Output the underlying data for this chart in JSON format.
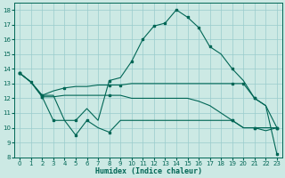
{
  "xlabel": "Humidex (Indice chaleur)",
  "xlim": [
    -0.5,
    23.5
  ],
  "ylim": [
    8,
    18.5
  ],
  "yticks": [
    8,
    9,
    10,
    11,
    12,
    13,
    14,
    15,
    16,
    17,
    18
  ],
  "xticks": [
    0,
    1,
    2,
    3,
    4,
    5,
    6,
    7,
    8,
    9,
    10,
    11,
    12,
    13,
    14,
    15,
    16,
    17,
    18,
    19,
    20,
    21,
    22,
    23
  ],
  "bg_color": "#cce9e4",
  "line_color": "#006655",
  "grid_color": "#99cccc",
  "line1": [
    13.7,
    13.1,
    12.2,
    12.2,
    10.5,
    10.5,
    11.3,
    10.5,
    13.2,
    13.4,
    14.5,
    16.0,
    16.9,
    17.1,
    18.0,
    17.5,
    16.8,
    15.5,
    15.0,
    14.0,
    13.2,
    12.0,
    11.5,
    8.2
  ],
  "line2": [
    13.7,
    13.1,
    12.2,
    12.5,
    12.7,
    12.8,
    12.8,
    12.9,
    12.9,
    12.9,
    13.0,
    13.0,
    13.0,
    13.0,
    13.0,
    13.0,
    13.0,
    13.0,
    13.0,
    13.0,
    13.0,
    12.0,
    11.5,
    10.0
  ],
  "line3": [
    13.7,
    13.1,
    12.1,
    12.1,
    12.2,
    12.2,
    12.2,
    12.2,
    12.2,
    12.2,
    12.0,
    12.0,
    12.0,
    12.0,
    12.0,
    12.0,
    11.8,
    11.5,
    11.0,
    10.5,
    10.0,
    10.0,
    10.0,
    10.0
  ],
  "line4": [
    13.7,
    13.1,
    12.1,
    10.5,
    10.5,
    9.5,
    10.5,
    10.0,
    9.7,
    10.5,
    10.5,
    10.5,
    10.5,
    10.5,
    10.5,
    10.5,
    10.5,
    10.5,
    10.5,
    10.5,
    10.0,
    10.0,
    9.8,
    10.0
  ],
  "markers1": [
    0,
    1,
    2,
    5,
    8,
    10,
    11,
    12,
    13,
    14,
    15,
    16,
    17,
    19,
    21,
    23
  ],
  "markers2": [
    0,
    2,
    4,
    8,
    9,
    19,
    20,
    21,
    23
  ],
  "markers3": [
    0,
    2,
    8,
    19,
    21,
    23
  ],
  "markers4": [
    0,
    2,
    3,
    5,
    6,
    8,
    19,
    21,
    23
  ]
}
